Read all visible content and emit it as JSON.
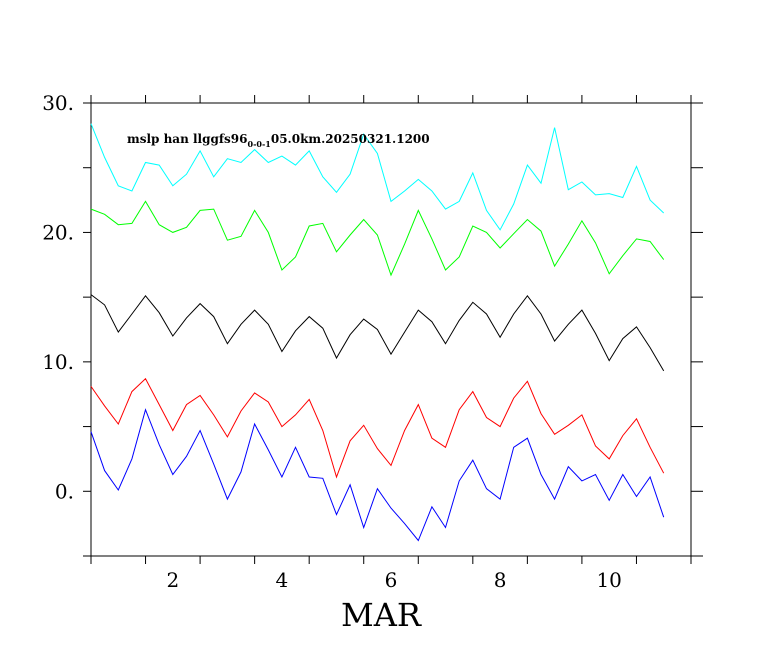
{
  "chart_data": {
    "type": "line",
    "title": "mslp han llggfs96",
    "title_subscript": "0-0-1",
    "title_tail": "05.0km.20250321.1200",
    "xlabel": "MAR",
    "ylabel": "",
    "x_start": 0.5,
    "x_step": 0.25,
    "xlim": [
      0.5,
      11.5
    ],
    "ylim": [
      -5,
      30
    ],
    "x_ticks": [
      2,
      4,
      6,
      8,
      10
    ],
    "x_tick_labels": [
      "2",
      "4",
      "6",
      "8",
      "10"
    ],
    "y_ticks": [
      0,
      10,
      20,
      30
    ],
    "y_tick_labels": [
      "0.",
      "10.",
      "20.",
      "30."
    ],
    "series": [
      {
        "color": "#00ffff",
        "values": [
          28.4,
          25.8,
          23.6,
          23.2,
          25.4,
          25.2,
          23.6,
          24.5,
          26.3,
          24.3,
          25.7,
          25.4,
          26.4,
          25.4,
          25.9,
          25.2,
          26.3,
          24.3,
          23.1,
          24.5,
          27.6,
          26.1,
          22.4,
          23.2,
          24.1,
          23.2,
          21.8,
          22.4,
          24.6,
          21.7,
          20.2,
          22.2,
          25.2,
          23.8,
          28.1,
          23.3,
          23.9,
          22.9,
          23.0,
          22.7,
          25.1,
          22.5,
          21.5
        ]
      },
      {
        "color": "#00ff00",
        "values": [
          21.8,
          21.4,
          20.6,
          20.7,
          22.4,
          20.6,
          20.0,
          20.4,
          21.7,
          21.8,
          19.4,
          19.7,
          21.7,
          20.0,
          17.1,
          18.1,
          20.5,
          20.7,
          18.5,
          19.8,
          21.0,
          19.8,
          16.7,
          19.1,
          21.7,
          19.5,
          17.1,
          18.1,
          20.5,
          20.0,
          18.8,
          19.9,
          21.0,
          20.1,
          17.4,
          19.1,
          20.9,
          19.2,
          16.8,
          18.2,
          19.5,
          19.3,
          17.9
        ]
      },
      {
        "color": "#000000",
        "values": [
          15.2,
          14.4,
          12.3,
          13.7,
          15.1,
          13.8,
          12.0,
          13.4,
          14.5,
          13.5,
          11.4,
          12.9,
          14.0,
          12.9,
          10.8,
          12.4,
          13.5,
          12.6,
          10.3,
          12.1,
          13.3,
          12.5,
          10.6,
          12.3,
          14.0,
          13.1,
          11.4,
          13.2,
          14.6,
          13.7,
          11.9,
          13.7,
          15.1,
          13.7,
          11.6,
          12.9,
          14.0,
          12.2,
          10.1,
          11.8,
          12.7,
          11.1,
          9.3
        ]
      },
      {
        "color": "#ff0000",
        "values": [
          8.1,
          6.6,
          5.2,
          7.7,
          8.7,
          6.7,
          4.7,
          6.7,
          7.4,
          5.9,
          4.2,
          6.2,
          7.6,
          6.9,
          5.0,
          5.9,
          7.1,
          4.7,
          1.1,
          3.9,
          5.1,
          3.3,
          2.0,
          4.7,
          6.7,
          4.1,
          3.4,
          6.3,
          7.7,
          5.7,
          5.0,
          7.2,
          8.5,
          6.0,
          4.4,
          5.1,
          5.9,
          3.5,
          2.5,
          4.3,
          5.6,
          3.4,
          1.4
        ]
      },
      {
        "color": "#0000ff",
        "values": [
          4.6,
          1.6,
          0.1,
          2.5,
          6.3,
          3.6,
          1.3,
          2.7,
          4.7,
          2.1,
          -0.6,
          1.5,
          5.2,
          3.2,
          1.1,
          3.4,
          1.1,
          1.0,
          -1.8,
          0.5,
          -2.8,
          0.2,
          -1.3,
          -2.5,
          -3.8,
          -1.2,
          -2.8,
          0.8,
          2.4,
          0.2,
          -0.6,
          3.4,
          4.1,
          1.3,
          -0.6,
          1.9,
          0.8,
          1.3,
          -0.7,
          1.3,
          -0.4,
          1.1,
          -2.0
        ]
      }
    ]
  }
}
